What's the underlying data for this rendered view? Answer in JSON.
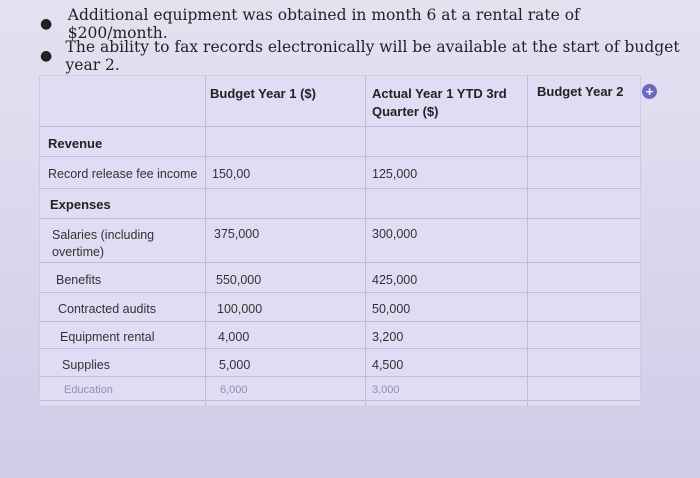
{
  "bullets": [
    "Additional equipment was obtained in month 6 at a rental rate of $200/month.",
    "The ability to fax records electronically will be available at the start of budget year 2."
  ],
  "table": {
    "headers": {
      "budget_year_1": "Budget Year 1 ($)",
      "actual_ytd": "Actual Year 1 YTD 3rd Quarter ($)",
      "budget_year_2": "Budget Year 2"
    },
    "section_revenue": "Revenue",
    "section_expenses": "Expenses",
    "rows": [
      {
        "label": "Record release fee income",
        "by1": "150,00",
        "ytd": "125,000"
      },
      {
        "label": "Salaries (including overtime)",
        "by1": "375,000",
        "ytd": "300,000"
      },
      {
        "label": "Benefits",
        "by1": "550,000",
        "ytd": "425,000"
      },
      {
        "label": "Contracted audits",
        "by1": "100,000",
        "ytd": "50,000"
      },
      {
        "label": "Equipment rental",
        "by1": "4,000",
        "ytd": "3,200"
      },
      {
        "label": "Supplies",
        "by1": "5,000",
        "ytd": "4,500"
      },
      {
        "label": "Education",
        "by1": "6,000",
        "ytd": "3,000"
      }
    ]
  },
  "icons": {
    "add": "plus-circle-icon"
  },
  "colors": {
    "accent": "#6b6ac0",
    "background": "#d9d7ea"
  }
}
